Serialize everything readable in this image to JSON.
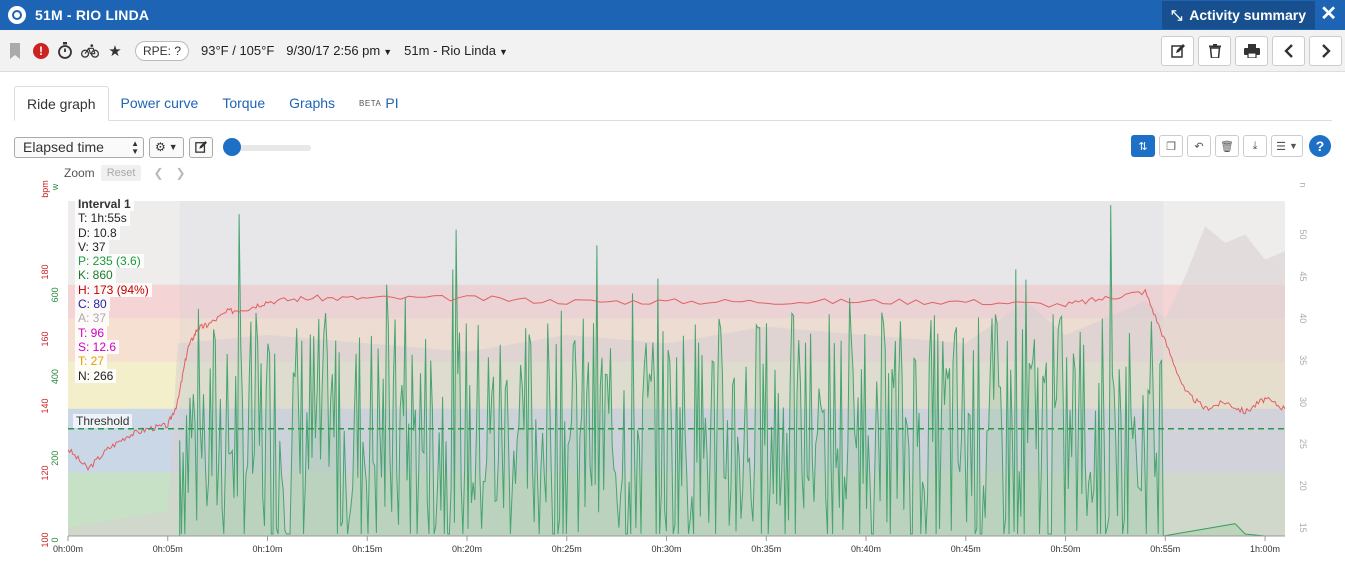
{
  "window": {
    "title": "51M - RIO LINDA",
    "panel": "Activity summary"
  },
  "toolbar": {
    "rpe": "RPE: ?",
    "temp": "93°F / 105°F",
    "datetime": "9/30/17 2:56 pm",
    "name": "51m - Rio Linda"
  },
  "tabs": [
    {
      "label": "Ride graph",
      "active": true
    },
    {
      "label": "Power curve"
    },
    {
      "label": "Torque"
    },
    {
      "label": "Graphs"
    },
    {
      "label": "PI",
      "badge": "BETA"
    }
  ],
  "controls": {
    "x_axis": "Elapsed time",
    "zoom_label": "Zoom",
    "reset_label": "Reset"
  },
  "interval": {
    "title": "Interval 1",
    "stats": [
      {
        "text": "T: 1h:55s",
        "color": "#222222"
      },
      {
        "text": "D: 10.8",
        "color": "#222222"
      },
      {
        "text": "V: 37",
        "color": "#222222"
      },
      {
        "text": "P: 235 (3.6)",
        "color": "#1a9a3a"
      },
      {
        "text": "K: 860",
        "color": "#1a7a2a"
      },
      {
        "text": "H: 173 (94%)",
        "color": "#c00000"
      },
      {
        "text": "C: 80",
        "color": "#2222aa"
      },
      {
        "text": "A: 37",
        "color": "#aaaaaa"
      },
      {
        "text": "T: 96",
        "color": "#cc00cc"
      },
      {
        "text": "S: 12.6",
        "color": "#cc00cc"
      },
      {
        "text": "T: 27",
        "color": "#e0a000"
      },
      {
        "text": "N: 266",
        "color": "#222222"
      }
    ]
  },
  "threshold_label": "Threshold",
  "chart_data": {
    "type": "line",
    "xlabel": "",
    "x_ticks": [
      "0h:00m",
      "0h:05m",
      "0h:10m",
      "0h:15m",
      "0h:20m",
      "0h:25m",
      "0h:30m",
      "0h:35m",
      "0h:40m",
      "0h:45m",
      "0h:50m",
      "0h:55m",
      "1h:00m"
    ],
    "xlim_minutes": [
      0,
      61
    ],
    "axes": {
      "heart_rate": {
        "unit": "bpm",
        "ticks": [
          100,
          120,
          140,
          160,
          180
        ],
        "range": [
          100,
          200
        ],
        "color": "#cc2222"
      },
      "power": {
        "unit": "w",
        "ticks": [
          0,
          200,
          400,
          600
        ],
        "range": [
          0,
          820
        ],
        "color": "#2a8a3a"
      },
      "speed": {
        "unit": "n",
        "ticks": [
          15,
          20,
          25,
          30,
          35,
          40,
          45,
          50
        ],
        "range": [
          14,
          54
        ],
        "color": "#aaaaaa"
      }
    },
    "hr_zones": [
      {
        "from": 100,
        "to": 119,
        "color": "#b8ddb8"
      },
      {
        "from": 119,
        "to": 138,
        "color": "#bcd0e6"
      },
      {
        "from": 138,
        "to": 152,
        "color": "#f5f0c0"
      },
      {
        "from": 152,
        "to": 165,
        "color": "#f7dcc8"
      },
      {
        "from": 165,
        "to": 175,
        "color": "#f5cccc"
      }
    ],
    "threshold_hr": 132,
    "interval_minutes": [
      5.6,
      54.9
    ],
    "series": [
      {
        "name": "H",
        "color": "#e06060",
        "x": [
          0,
          1,
          2,
          3,
          4,
          5,
          5.5,
          6,
          6.5,
          7,
          8,
          9,
          10,
          12,
          15,
          20,
          25,
          30,
          35,
          40,
          45,
          50,
          52,
          54,
          55,
          56,
          57,
          58,
          59,
          60,
          61
        ],
        "values": [
          126,
          120,
          126,
          130,
          132,
          133,
          140,
          156,
          162,
          163,
          167,
          168,
          170,
          171,
          171,
          171,
          170,
          170,
          170,
          170,
          170,
          169,
          171,
          173,
          158,
          143,
          138,
          140,
          137,
          141,
          138
        ]
      },
      {
        "name": "P",
        "color": "#3aa060",
        "x": [
          0,
          5.6,
          5.7,
          54.9,
          55,
          57,
          58.5,
          59,
          60,
          61
        ],
        "values": [
          0,
          0,
          240,
          240,
          0,
          0,
          30,
          5,
          0,
          0
        ]
      },
      {
        "name": "S",
        "color": "#d8d0d0",
        "x": [
          0,
          5,
          5.5,
          10,
          15,
          20,
          25,
          30,
          35,
          40,
          45,
          48,
          50,
          52,
          54,
          55,
          56,
          57,
          58,
          59,
          60,
          61
        ],
        "values": [
          15,
          17,
          37,
          38,
          37,
          36,
          38,
          37,
          39,
          38,
          37,
          42,
          38,
          40,
          42,
          40,
          45,
          51,
          49,
          50,
          47,
          48
        ]
      }
    ]
  }
}
